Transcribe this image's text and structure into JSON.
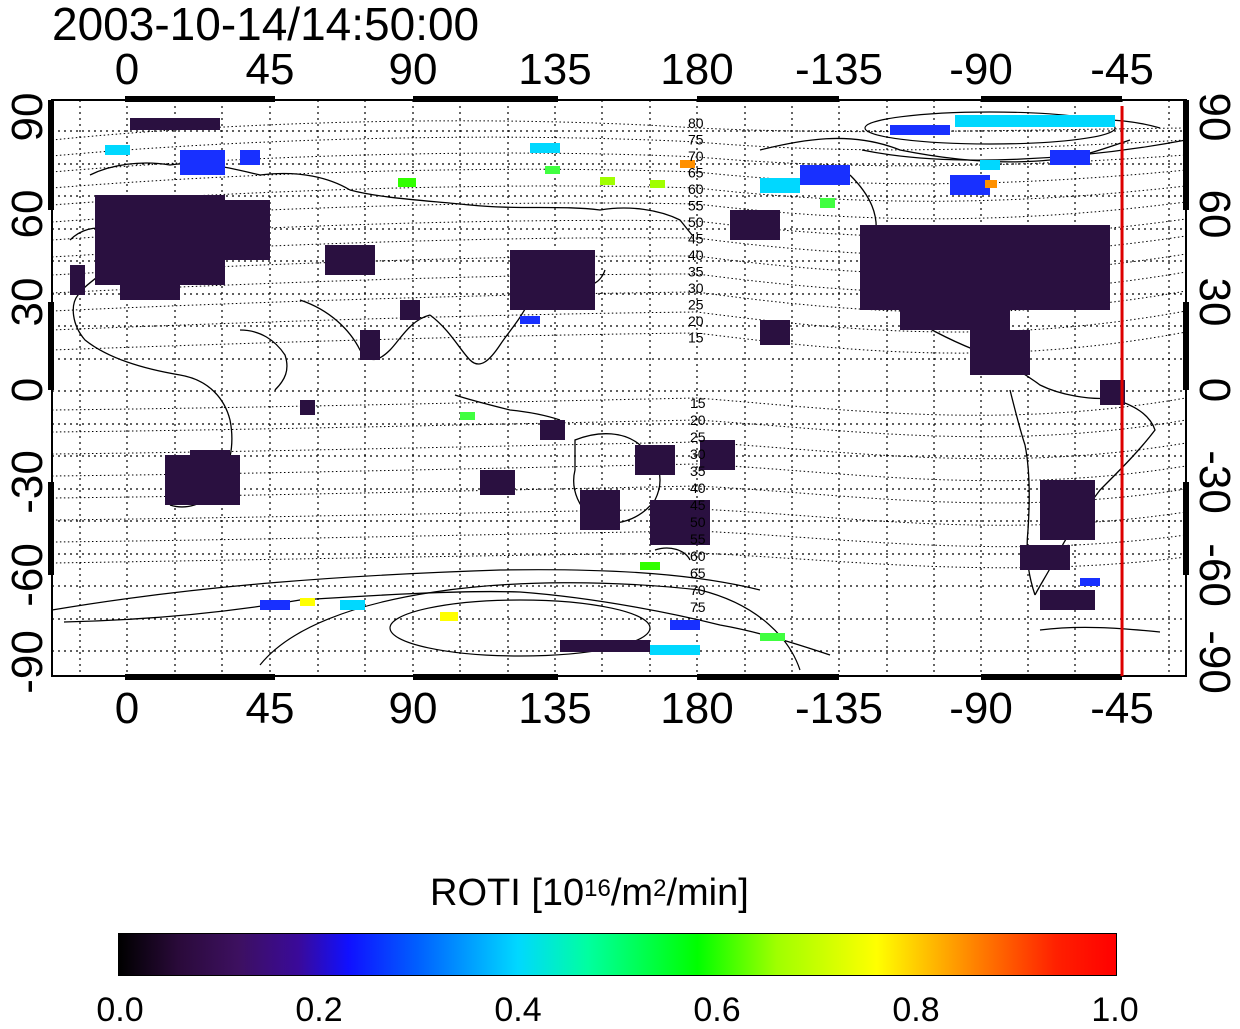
{
  "timestamp": "2003-10-14/14:50:00",
  "axes": {
    "lon_ticks": [
      "0",
      "45",
      "90",
      "135",
      "180",
      "-135",
      "-90",
      "-45"
    ],
    "lat_ticks": [
      "90",
      "60",
      "30",
      "0",
      "-30",
      "-60",
      "-90"
    ]
  },
  "contour_labels_north": [
    "80",
    "75",
    "70",
    "65",
    "60",
    "55",
    "50",
    "45",
    "40",
    "35",
    "30",
    "25",
    "20",
    "15"
  ],
  "contour_labels_south": [
    "15",
    "20",
    "25",
    "30",
    "35",
    "40",
    "45",
    "50",
    "55",
    "60",
    "65",
    "70",
    "75"
  ],
  "colorbar": {
    "label_main": "ROTI  [10",
    "label_exp1": "16",
    "label_mid": "/m",
    "label_exp2": "2",
    "label_end": "/min]",
    "ticks": [
      "0.0",
      "0.2",
      "0.4",
      "0.6",
      "0.8",
      "1.0"
    ],
    "range": [
      0.0,
      1.0
    ]
  },
  "terminator_color": "#dd0000",
  "terminator_lon": -46
}
